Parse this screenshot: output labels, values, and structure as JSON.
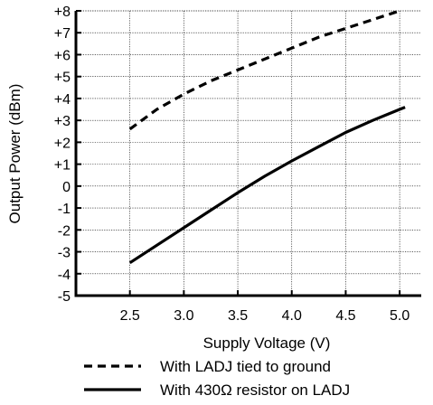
{
  "chart_data": {
    "type": "line",
    "title": "",
    "xlabel": "Supply Voltage (V)",
    "ylabel": "Output Power (dBm)",
    "xlim": [
      2.0,
      5.2
    ],
    "ylim": [
      -5,
      8
    ],
    "xticks": [
      2.5,
      3.0,
      3.5,
      4.0,
      4.5,
      5.0
    ],
    "xtick_labels": [
      "2.5",
      "3.0",
      "3.5",
      "4.0",
      "4.5",
      "5.0"
    ],
    "yticks": [
      -5,
      -4,
      -3,
      -2,
      -1,
      0,
      1,
      2,
      3,
      4,
      5,
      6,
      7,
      8
    ],
    "ytick_labels": [
      "-5",
      "-4",
      "-3",
      "-2",
      "-1",
      "0",
      "+1",
      "+2",
      "+3",
      "+4",
      "+5",
      "+6",
      "+7",
      "+8"
    ],
    "grid": true,
    "legend_placement": "bottom",
    "series": [
      {
        "name": "With LADJ tied to ground",
        "style": "dashed",
        "color": "#000000",
        "x": [
          2.5,
          2.75,
          3.0,
          3.25,
          3.5,
          3.75,
          4.0,
          4.25,
          4.5,
          4.75,
          5.0
        ],
        "y": [
          2.6,
          3.5,
          4.2,
          4.8,
          5.3,
          5.8,
          6.3,
          6.8,
          7.2,
          7.6,
          8.0
        ]
      },
      {
        "name": "With 430Ω  resistor on LADJ",
        "style": "solid",
        "color": "#000000",
        "x": [
          2.5,
          2.75,
          3.0,
          3.25,
          3.5,
          3.75,
          4.0,
          4.25,
          4.5,
          4.75,
          5.0,
          5.05
        ],
        "y": [
          -3.5,
          -2.7,
          -1.9,
          -1.1,
          -0.3,
          0.45,
          1.15,
          1.8,
          2.45,
          3.0,
          3.5,
          3.6
        ]
      }
    ]
  }
}
